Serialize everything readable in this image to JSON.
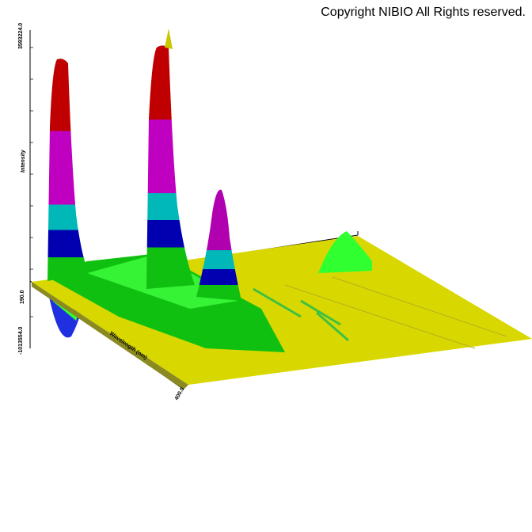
{
  "copyright": "Copyright NIBIO All Rights reserved.",
  "axes": {
    "z_label": "Intensity",
    "x_label": "Wavelength (nm)",
    "z_max": "3593224.0",
    "z_min": "-1013554.0",
    "x_start": "190.0",
    "x_end": "400.0"
  }
}
